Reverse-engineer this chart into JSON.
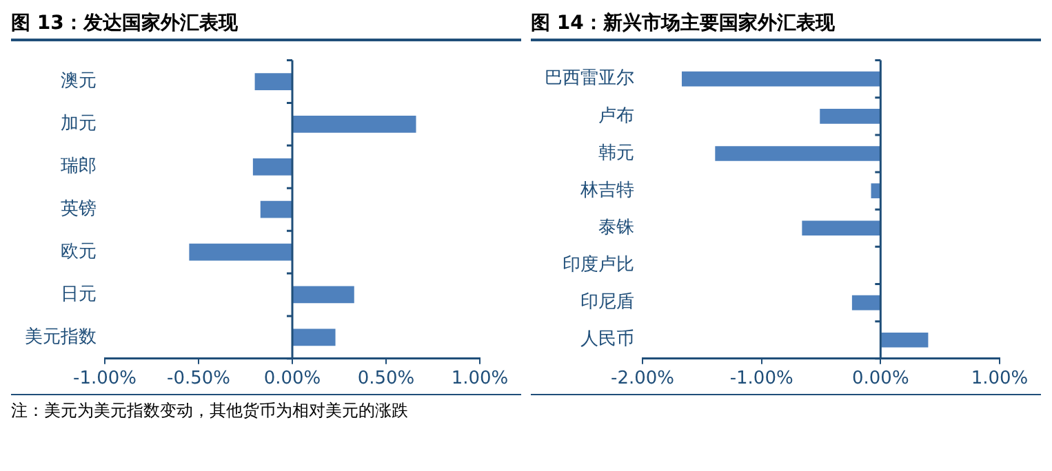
{
  "chart_data": [
    {
      "type": "bar",
      "orientation": "horizontal",
      "title": "图 13：发达国家外汇表现",
      "categories": [
        "澳元",
        "加元",
        "瑞郎",
        "英镑",
        "欧元",
        "日元",
        "美元指数"
      ],
      "values": [
        -0.2,
        0.66,
        -0.21,
        -0.17,
        -0.55,
        0.33,
        0.23
      ],
      "color": "#4f81bd",
      "xlim": [
        -1,
        1
      ],
      "xticks": [
        {
          "value": -1,
          "label": "-1.00%"
        },
        {
          "value": -0.5,
          "label": "-0.50%"
        },
        {
          "value": 0,
          "label": "0.00%"
        },
        {
          "value": 0.5,
          "label": "0.50%"
        },
        {
          "value": 1,
          "label": "1.00%"
        }
      ],
      "grid": false,
      "legend": false,
      "ref_lines": [
        {
          "axis": "x",
          "value": 0,
          "color": "#1f4e79"
        }
      ],
      "annotations": [
        "注：美元为美元指数变动，其他货币为相对美元的涨跌"
      ]
    },
    {
      "type": "bar",
      "orientation": "horizontal",
      "title": "图 14：新兴市场主要国家外汇表现",
      "categories": [
        "巴西雷亚尔",
        "卢布",
        "韩元",
        "林吉特",
        "泰铢",
        "印度卢比",
        "印尼盾",
        "人民币"
      ],
      "values": [
        -1.67,
        -0.51,
        -1.39,
        -0.08,
        -0.66,
        0,
        -0.24,
        0.4
      ],
      "color": "#4f81bd",
      "xlim": [
        -2,
        1
      ],
      "xticks": [
        {
          "value": -2,
          "label": "-2.00%"
        },
        {
          "value": -1,
          "label": "-1.00%"
        },
        {
          "value": 0,
          "label": "0.00%"
        },
        {
          "value": 1,
          "label": "1.00%"
        }
      ],
      "grid": false,
      "legend": false,
      "ref_lines": [
        {
          "axis": "x",
          "value": 0,
          "color": "#1f4e79"
        }
      ]
    }
  ]
}
